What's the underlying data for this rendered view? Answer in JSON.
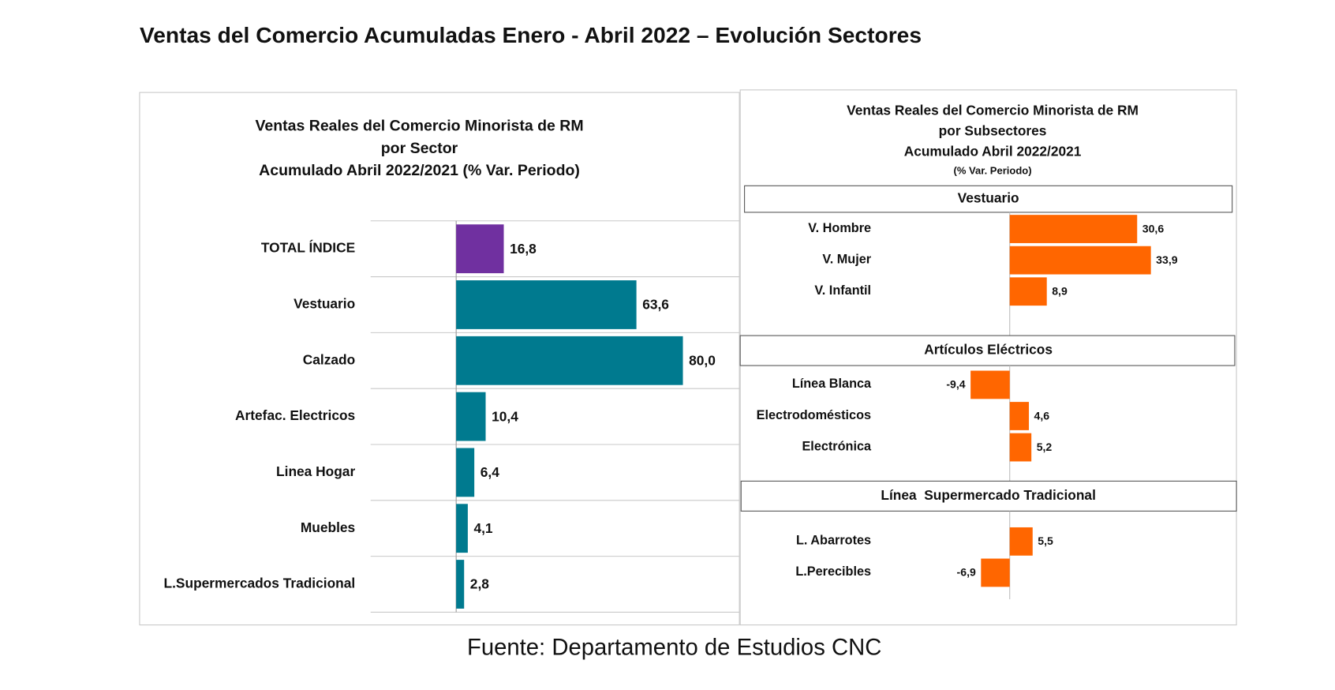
{
  "title": "Ventas del Comercio Acumuladas Enero - Abril 2022 – Evolución Sectores",
  "source": "Fuente: Departamento de Estudios CNC",
  "chart_data": [
    {
      "type": "hbar",
      "title": [
        "Ventas Reales del Comercio Minorista de RM",
        "por Sector",
        "Acumulado Abril 2022/2021 (% Var. Periodo)"
      ],
      "categories": [
        "TOTAL ÍNDICE",
        "Vestuario",
        "Calzado",
        "Artefac. Electricos",
        "Linea Hogar",
        "Muebles",
        "L.Supermercados Tradicional"
      ],
      "values": [
        16.8,
        63.6,
        80.0,
        10.4,
        6.4,
        4.1,
        2.8
      ],
      "value_labels": [
        "16,8",
        "63,6",
        "80,0",
        "10,4",
        "6,4",
        "4,1",
        "2,8"
      ],
      "colors": [
        "#7030a0",
        "#007a8f",
        "#007a8f",
        "#007a8f",
        "#007a8f",
        "#007a8f",
        "#007a8f"
      ]
    },
    {
      "type": "hbar-panels",
      "title": [
        "Ventas Reales del Comercio Minorista de RM",
        "por Subsectores",
        "Acumulado Abril 2022/2021",
        "(% Var. Periodo)"
      ],
      "color": "#ff6600",
      "panels": [
        {
          "title": "Vestuario",
          "categories": [
            "V. Hombre",
            "V. Mujer",
            "V. Infantil"
          ],
          "values": [
            30.6,
            33.9,
            8.9
          ],
          "value_labels": [
            "30,6",
            "33,9",
            "8,9"
          ]
        },
        {
          "title": "Artículos Eléctricos",
          "categories": [
            "Línea Blanca",
            "Electrodomésticos",
            "Electrónica"
          ],
          "values": [
            -9.4,
            4.6,
            5.2
          ],
          "value_labels": [
            "-9,4",
            "4,6",
            "5,2"
          ]
        },
        {
          "title": "Línea  Supermercado Tradicional",
          "categories": [
            "L. Abarrotes",
            "L.Perecibles"
          ],
          "values": [
            5.5,
            -6.9
          ],
          "value_labels": [
            "5,5",
            "-6,9"
          ]
        }
      ]
    }
  ]
}
